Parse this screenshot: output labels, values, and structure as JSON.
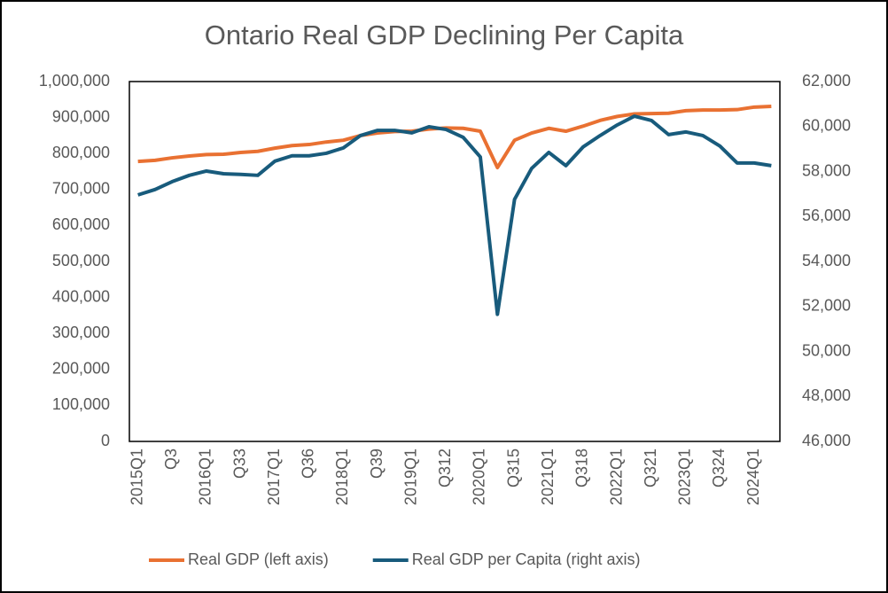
{
  "chart_data": {
    "type": "line",
    "title": "Ontario Real GDP Declining Per Capita",
    "categories": [
      "2015Q1",
      null,
      "Q3",
      null,
      "2016Q1",
      null,
      "Q33",
      null,
      "2017Q1",
      null,
      "Q36",
      null,
      "2018Q1",
      null,
      "Q39",
      null,
      "2019Q1",
      null,
      "Q312",
      null,
      "2020Q1",
      null,
      "Q315",
      null,
      "2021Q1",
      null,
      "Q318",
      null,
      "2022Q1",
      null,
      "Q321",
      null,
      "2023Q1",
      null,
      "Q324",
      null,
      "2024Q1",
      null
    ],
    "series": [
      {
        "name": "Real GDP (left axis)",
        "color": "#E97132",
        "values": [
          778000,
          781000,
          788000,
          793000,
          797000,
          798000,
          803000,
          806000,
          815000,
          822000,
          825000,
          832000,
          837000,
          850000,
          857000,
          861000,
          862000,
          868000,
          871000,
          870000,
          862000,
          761000,
          837000,
          857000,
          870000,
          862000,
          876000,
          892000,
          903000,
          910000,
          911000,
          912000,
          919000,
          921000,
          921000,
          922000,
          929000,
          931000
        ]
      },
      {
        "name": "Real GDP per Capita (right axis)",
        "color": "#185B7C",
        "axis": "y2",
        "values": [
          56960,
          57200,
          57550,
          57830,
          58020,
          57900,
          57870,
          57830,
          58460,
          58700,
          58700,
          58810,
          59050,
          59600,
          59830,
          59830,
          59720,
          59990,
          59870,
          59520,
          58650,
          51650,
          56760,
          58140,
          58850,
          58260,
          59090,
          59600,
          60070,
          60460,
          60270,
          59640,
          59760,
          59600,
          59130,
          58380,
          58380,
          58260
        ]
      }
    ],
    "ylim": [
      0,
      1000000
    ],
    "yticks": [
      0,
      {
        "value": 100000,
        "label": "100,000"
      },
      {
        "value": 200000,
        "label": "200,000"
      },
      {
        "value": 300000,
        "label": "300,000"
      },
      {
        "value": 400000,
        "label": "400,000"
      },
      {
        "value": 500000,
        "label": "500,000"
      },
      {
        "value": 600000,
        "label": "600,000"
      },
      {
        "value": 700000,
        "label": "700,000"
      },
      {
        "value": 800000,
        "label": "800,000"
      },
      {
        "value": 900000,
        "label": "900,000"
      },
      {
        "value": 1000000,
        "label": "1,000,000"
      }
    ],
    "y2lim": [
      46000,
      62000
    ],
    "y2ticks": [
      {
        "value": 46000,
        "label": "46,000"
      },
      {
        "value": 48000,
        "label": "48,000"
      },
      {
        "value": 50000,
        "label": "50,000"
      },
      {
        "value": 52000,
        "label": "52,000"
      },
      {
        "value": 54000,
        "label": "54,000"
      },
      {
        "value": 56000,
        "label": "56,000"
      },
      {
        "value": 58000,
        "label": "58,000"
      },
      {
        "value": 60000,
        "label": "60,000"
      },
      {
        "value": 62000,
        "label": "62,000"
      }
    ],
    "grid": false,
    "legend": "bottom"
  }
}
